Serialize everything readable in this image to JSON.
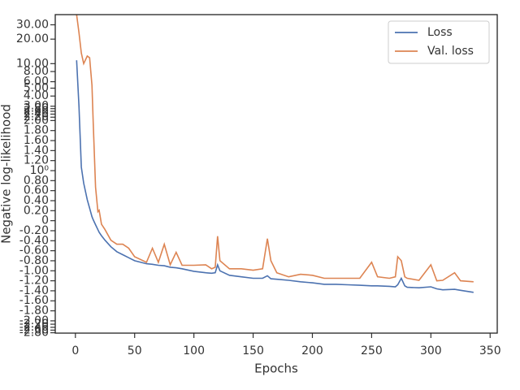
{
  "chart_data": {
    "type": "line",
    "xlabel": "Epochs",
    "ylabel": "Negative log-likelihood",
    "x": [
      1,
      3,
      5,
      7,
      10,
      12,
      14,
      15,
      17,
      19,
      20,
      22,
      25,
      30,
      35,
      40,
      45,
      50,
      60,
      65,
      70,
      75,
      80,
      85,
      90,
      100,
      110,
      115,
      118,
      120,
      122,
      130,
      140,
      150,
      158,
      162,
      165,
      170,
      180,
      190,
      200,
      210,
      220,
      230,
      240,
      250,
      255,
      265,
      270,
      272,
      275,
      278,
      280,
      290,
      300,
      305,
      310,
      320,
      325,
      336
    ],
    "series": [
      {
        "name": "Loss",
        "color": "#4c72b0",
        "values": [
          11,
          3.0,
          1.07,
          0.75,
          0.42,
          0.25,
          0.08,
          0.02,
          -0.08,
          -0.18,
          -0.23,
          -0.3,
          -0.39,
          -0.52,
          -0.62,
          -0.68,
          -0.74,
          -0.8,
          -0.86,
          -0.87,
          -0.89,
          -0.9,
          -0.93,
          -0.94,
          -0.96,
          -1.01,
          -1.04,
          -1.05,
          -1.04,
          -0.88,
          -1.0,
          -1.09,
          -1.12,
          -1.15,
          -1.15,
          -1.1,
          -1.16,
          -1.17,
          -1.19,
          -1.22,
          -1.24,
          -1.27,
          -1.27,
          -1.28,
          -1.29,
          -1.3,
          -1.3,
          -1.31,
          -1.32,
          -1.28,
          -1.15,
          -1.3,
          -1.33,
          -1.34,
          -1.32,
          -1.36,
          -1.38,
          -1.37,
          -1.39,
          -1.43
        ]
      },
      {
        "name": "Val. loss",
        "color": "#dd8452",
        "values": [
          40,
          24,
          13.5,
          10,
          12.4,
          11.8,
          5.4,
          1.97,
          0.67,
          0.18,
          0.21,
          -0.07,
          -0.18,
          -0.39,
          -0.47,
          -0.47,
          -0.55,
          -0.72,
          -0.83,
          -0.55,
          -0.83,
          -0.47,
          -0.88,
          -0.63,
          -0.89,
          -0.89,
          -0.88,
          -0.96,
          -0.93,
          -0.31,
          -0.8,
          -0.96,
          -0.96,
          -0.99,
          -0.96,
          -0.36,
          -0.8,
          -1.04,
          -1.12,
          -1.07,
          -1.09,
          -1.15,
          -1.15,
          -1.15,
          -1.15,
          -0.83,
          -1.12,
          -1.15,
          -1.12,
          -0.72,
          -0.8,
          -1.12,
          -1.15,
          -1.19,
          -0.88,
          -1.2,
          -1.19,
          -1.04,
          -1.2,
          -1.22
        ]
      }
    ],
    "xlim": [
      -17,
      356
    ],
    "xticks": [
      0,
      50,
      100,
      150,
      200,
      250,
      300,
      350
    ],
    "ylim": [
      -2.83,
      40
    ],
    "yscale": "symlog",
    "linthresh": 2,
    "linscale": 1.23,
    "yticks": [
      {
        "value": -2.8,
        "label": "-2.80"
      },
      {
        "value": -2.6,
        "label": "-2.60"
      },
      {
        "value": -2.4,
        "label": "-2.40"
      },
      {
        "value": -2.2,
        "label": "-2.20"
      },
      {
        "value": -2.0,
        "label": "-2.00"
      },
      {
        "value": -1.8,
        "label": "-1.80"
      },
      {
        "value": -1.6,
        "label": "-1.60"
      },
      {
        "value": -1.4,
        "label": "-1.40"
      },
      {
        "value": -1.2,
        "label": "-1.20"
      },
      {
        "value": -1.0,
        "label": "-1.00"
      },
      {
        "value": -0.8,
        "label": "-0.80"
      },
      {
        "value": -0.6,
        "label": "-0.60"
      },
      {
        "value": -0.4,
        "label": "-0.40"
      },
      {
        "value": -0.2,
        "label": "-0.20"
      },
      0,
      {
        "value": 0.2,
        "label": "0.20"
      },
      {
        "value": 0.4,
        "label": "0.40"
      },
      {
        "value": 0.6,
        "label": "0.60"
      },
      {
        "value": 0.8,
        "label": "0.80"
      },
      {
        "value": 1,
        "label": "10⁰"
      },
      {
        "value": 1.2,
        "label": "1.20"
      },
      {
        "value": 1.4,
        "label": "1.40"
      },
      {
        "value": 1.6,
        "label": "1.60"
      },
      {
        "value": 1.8,
        "label": "1.80"
      },
      {
        "value": 2.0,
        "label": "2.00"
      },
      {
        "value": 2.2,
        "label": "2.20"
      },
      {
        "value": 2.4,
        "label": "2.40"
      },
      {
        "value": 2.6,
        "label": "2.60"
      },
      {
        "value": 2.8,
        "label": "2.80"
      },
      {
        "value": 3.0,
        "label": "3.00"
      },
      {
        "value": 4.0,
        "label": "4.00"
      },
      {
        "value": 5.0,
        "label": "5.00"
      },
      {
        "value": 6.0,
        "label": "6.00"
      },
      {
        "value": 8.0,
        "label": "8.00"
      },
      {
        "value": 10.0,
        "label": "10.00"
      },
      {
        "value": 20.0,
        "label": "20.00"
      },
      {
        "value": 30.0,
        "label": "30.00"
      }
    ],
    "legend": "upper right",
    "grid": false
  }
}
